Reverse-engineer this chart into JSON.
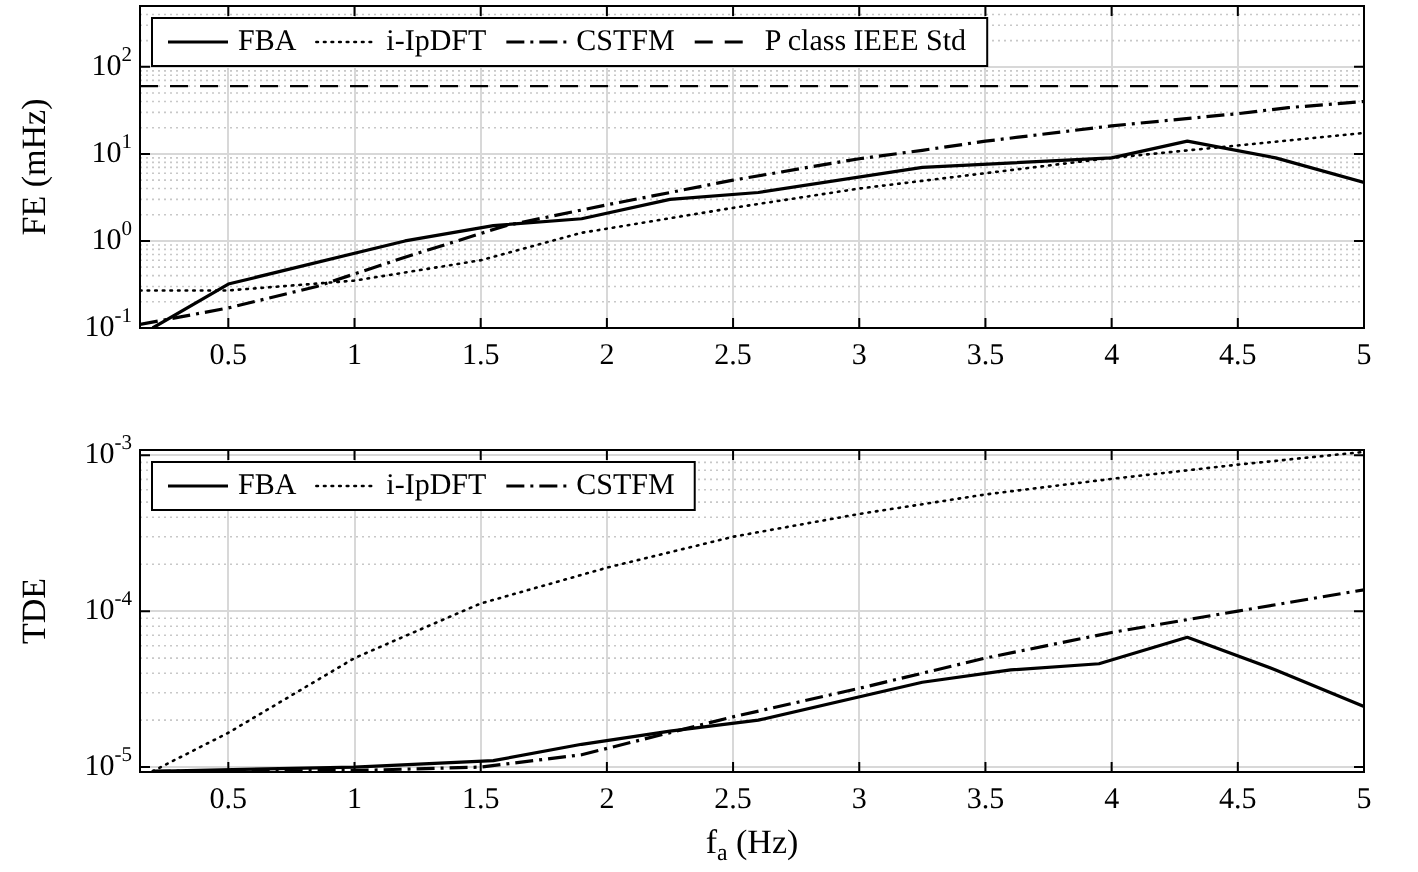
{
  "chart_data": [
    {
      "type": "line",
      "ylabel": "FE (mHz)",
      "xlim": [
        0.15,
        5
      ],
      "xticks": [
        0.5,
        1,
        1.5,
        2,
        2.5,
        3,
        3.5,
        4,
        4.5,
        5
      ],
      "ylim": [
        0.1,
        500
      ],
      "yticks": [
        {
          "value": 0.1,
          "label": "10$^{-1}$"
        },
        {
          "value": 1,
          "label": "10$^{0}$"
        },
        {
          "value": 10,
          "label": "10$^{1}$"
        },
        {
          "value": 100,
          "label": "10$^{2}$"
        }
      ],
      "log": "y",
      "grid": true,
      "legend": "top left",
      "series": [
        {
          "name": "FBA",
          "color": "#000000",
          "line_style": "solid",
          "x": [
            0.2,
            0.5,
            1.2,
            1.55,
            1.9,
            2.25,
            2.6,
            3.25,
            4.0,
            4.3,
            4.65,
            5.0
          ],
          "values": [
            0.1,
            0.32,
            1.0,
            1.5,
            1.8,
            3.0,
            3.6,
            7,
            9,
            14,
            9,
            4.7
          ]
        },
        {
          "name": "i-IpDFT",
          "color": "#000000",
          "line_style": "dotted",
          "x": [
            0.15,
            0.5,
            1.0,
            1.5,
            1.9,
            2.5,
            3.0,
            3.5,
            4.0,
            4.5,
            5.0
          ],
          "values": [
            0.27,
            0.27,
            0.35,
            0.6,
            1.24,
            2.4,
            4,
            6,
            9,
            12.5,
            17.4
          ]
        },
        {
          "name": "CSTFM",
          "color": "#000000",
          "line_style": "dashdot",
          "x": [
            0.15,
            0.5,
            0.85,
            1.2,
            1.6,
            2.0,
            2.25,
            2.5,
            3.0,
            3.25,
            3.5,
            4.0,
            4.5,
            4.7,
            5.0
          ],
          "values": [
            0.11,
            0.17,
            0.3,
            0.65,
            1.5,
            2.6,
            3.6,
            5,
            8.8,
            11,
            14,
            21,
            29,
            34,
            40
          ]
        }
      ],
      "ref_lines": [
        {
          "axis": "y",
          "value": 60,
          "label": "P class IEEE Std",
          "color": "#000000",
          "line_style": "dashed"
        }
      ]
    },
    {
      "type": "line",
      "ylabel": "TDE",
      "xlabel": "f$_{a}$ (Hz)",
      "xlim": [
        0.15,
        5
      ],
      "xticks": [
        0.5,
        1,
        1.5,
        2,
        2.5,
        3,
        3.5,
        4,
        4.5,
        5
      ],
      "ylim": [
        9.3e-06,
        0.00108
      ],
      "yticks": [
        {
          "value": 1e-05,
          "label": "10$^{-5}$"
        },
        {
          "value": 0.0001,
          "label": "10$^{-4}$"
        },
        {
          "value": 0.001,
          "label": "10$^{-3}$"
        }
      ],
      "log": "y",
      "grid": true,
      "legend": "top left",
      "series": [
        {
          "name": "FBA",
          "color": "#000000",
          "line_style": "solid",
          "x": [
            0.2,
            1.0,
            1.55,
            1.9,
            2.25,
            2.6,
            3.25,
            3.6,
            3.95,
            4.3,
            4.65,
            5.0
          ],
          "values": [
            9.4e-06,
            1e-05,
            1.1e-05,
            1.4e-05,
            1.7e-05,
            2e-05,
            3.5e-05,
            4.2e-05,
            4.6e-05,
            6.8e-05,
            4.2e-05,
            2.45e-05
          ]
        },
        {
          "name": "i-IpDFT",
          "color": "#000000",
          "line_style": "dotted",
          "x": [
            0.2,
            0.5,
            1.0,
            1.25,
            1.5,
            2.0,
            2.5,
            3.0,
            3.5,
            4.0,
            4.5,
            5.0
          ],
          "values": [
            9.4e-06,
            1.66e-05,
            5e-05,
            7.5e-05,
            0.000112,
            0.00019,
            0.0003,
            0.00042,
            0.00056,
            0.000705,
            0.00087,
            0.00105
          ]
        },
        {
          "name": "CSTFM",
          "color": "#000000",
          "line_style": "dashdot",
          "x": [
            0.2,
            1.0,
            1.5,
            1.9,
            2.5,
            3.0,
            3.5,
            4.0,
            4.5,
            5.0
          ],
          "values": [
            9.4e-06,
            9.5e-06,
            1e-05,
            1.2e-05,
            2.1e-05,
            3.2e-05,
            5e-05,
            7.3e-05,
            0.0001,
            0.000137
          ]
        }
      ]
    }
  ]
}
